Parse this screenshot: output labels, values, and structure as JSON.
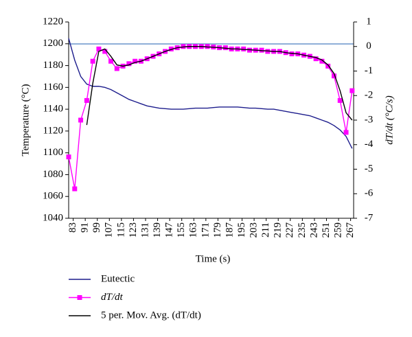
{
  "chart_data": {
    "type": "line",
    "xlabel": "Time (s)",
    "ylabel": "Temperature (°C)",
    "y2label": "dT/dt (°C/s)",
    "x": [
      80,
      84,
      88,
      92,
      96,
      100,
      104,
      108,
      112,
      116,
      120,
      124,
      128,
      132,
      136,
      140,
      144,
      148,
      152,
      156,
      160,
      164,
      168,
      172,
      176,
      180,
      184,
      188,
      192,
      196,
      200,
      204,
      208,
      212,
      216,
      220,
      224,
      228,
      232,
      236,
      240,
      244,
      248,
      252,
      256,
      260,
      264,
      268
    ],
    "xlim": [
      80,
      269
    ],
    "xticks": [
      83,
      91,
      99,
      107,
      115,
      123,
      131,
      139,
      147,
      155,
      163,
      171,
      179,
      187,
      195,
      203,
      211,
      219,
      227,
      235,
      243,
      251,
      259,
      267
    ],
    "ylim": [
      1040,
      1220
    ],
    "yticks": [
      1040,
      1060,
      1080,
      1100,
      1120,
      1140,
      1160,
      1180,
      1200,
      1220
    ],
    "y2lim": [
      -7,
      1
    ],
    "y2ticks": [
      -7,
      -6,
      -5,
      -4,
      -3,
      -2,
      -1,
      0,
      1
    ],
    "series": [
      {
        "name": "Eutectic",
        "color": "#1c1c8c",
        "values": [
          1205,
          1185,
          1170,
          1163,
          1161,
          1161,
          1160,
          1158,
          1155,
          1152,
          1149,
          1147,
          1145,
          1143,
          1142,
          1141,
          1140.5,
          1140,
          1140,
          1140,
          1140.5,
          1141,
          1141,
          1141,
          1141.5,
          1142,
          1142,
          1142,
          1142,
          1141.5,
          1141,
          1141,
          1140.5,
          1140,
          1140,
          1139,
          1138,
          1137,
          1136,
          1135,
          1134,
          1132,
          1130,
          1128,
          1125,
          1121,
          1115,
          1104
        ]
      },
      {
        "name": "dT/dt",
        "color": "#ff00ff",
        "axis": "y2",
        "marker": "square",
        "values": [
          -4.5,
          -5.8,
          -3,
          -2.2,
          -0.6,
          -0.1,
          -0.2,
          -0.6,
          -0.9,
          -0.8,
          -0.7,
          -0.6,
          -0.6,
          -0.5,
          -0.4,
          -0.3,
          -0.2,
          -0.1,
          -0.05,
          0,
          0,
          0,
          0,
          0,
          -0.02,
          -0.05,
          -0.05,
          -0.1,
          -0.1,
          -0.1,
          -0.15,
          -0.15,
          -0.15,
          -0.2,
          -0.2,
          -0.2,
          -0.25,
          -0.3,
          -0.3,
          -0.35,
          -0.4,
          -0.5,
          -0.6,
          -0.8,
          -1.2,
          -2.2,
          -3.5,
          -1.8
        ]
      },
      {
        "name": "5 per. Mov. Avg. (dT/dt)",
        "color": "#000000",
        "axis": "y2",
        "values": [
          null,
          null,
          null,
          -3.2,
          -1.5,
          -0.2,
          -0.1,
          -0.4,
          -0.75,
          -0.8,
          -0.75,
          -0.65,
          -0.6,
          -0.5,
          -0.4,
          -0.3,
          -0.2,
          -0.12,
          -0.05,
          -0.02,
          0,
          0,
          0,
          -0.02,
          -0.03,
          -0.05,
          -0.07,
          -0.1,
          -0.1,
          -0.12,
          -0.13,
          -0.15,
          -0.17,
          -0.18,
          -0.2,
          -0.2,
          -0.25,
          -0.28,
          -0.3,
          -0.35,
          -0.4,
          -0.45,
          -0.55,
          -0.75,
          -1.1,
          -1.8,
          -2.7,
          -3.0
        ]
      }
    ]
  }
}
